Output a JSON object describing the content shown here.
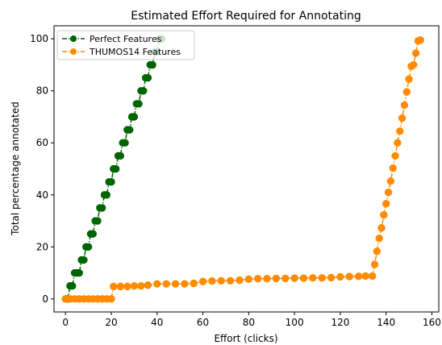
{
  "chart_data": {
    "type": "line",
    "title": "Estimated Effort Required for Annotating",
    "xlabel": "Effort (clicks)",
    "ylabel": "Total percentage annotated",
    "xlim": [
      -5,
      163
    ],
    "ylim": [
      -5,
      105
    ],
    "xticks": [
      0,
      20,
      40,
      60,
      80,
      100,
      120,
      140,
      160
    ],
    "yticks": [
      0,
      20,
      40,
      60,
      80,
      100
    ],
    "grid": false,
    "legend_position": "top-left",
    "series": [
      {
        "name": "Perfect Features",
        "color": "#006400",
        "marker": "circle",
        "line_style": "dash-dot",
        "points": [
          [
            0,
            0
          ],
          [
            1,
            0
          ],
          [
            2,
            5
          ],
          [
            3,
            5
          ],
          [
            4,
            10
          ],
          [
            5,
            10
          ],
          [
            6,
            10
          ],
          [
            7,
            15
          ],
          [
            8,
            15
          ],
          [
            9,
            20
          ],
          [
            10,
            20
          ],
          [
            11,
            25
          ],
          [
            12,
            25
          ],
          [
            13,
            30
          ],
          [
            14,
            30
          ],
          [
            15,
            35
          ],
          [
            16,
            35
          ],
          [
            17,
            40
          ],
          [
            18,
            40
          ],
          [
            19,
            45
          ],
          [
            20,
            45
          ],
          [
            21,
            50
          ],
          [
            22,
            50
          ],
          [
            23,
            55
          ],
          [
            24,
            55
          ],
          [
            25,
            60
          ],
          [
            26,
            60
          ],
          [
            27,
            65
          ],
          [
            28,
            65
          ],
          [
            29,
            70
          ],
          [
            30,
            70
          ],
          [
            31,
            75
          ],
          [
            32,
            75
          ],
          [
            33,
            80
          ],
          [
            34,
            80
          ],
          [
            35,
            85
          ],
          [
            36,
            85
          ],
          [
            37,
            90
          ],
          [
            38,
            90
          ],
          [
            39,
            95
          ],
          [
            40,
            95
          ],
          [
            41,
            100
          ],
          [
            42,
            100
          ]
        ]
      },
      {
        "name": "THUMOS14 Features",
        "color": "#ff8c00",
        "marker": "circle",
        "line_style": "dash-dot",
        "points": [
          [
            0,
            0
          ],
          [
            2,
            0
          ],
          [
            4,
            0
          ],
          [
            6,
            0
          ],
          [
            8,
            0
          ],
          [
            10,
            0
          ],
          [
            12,
            0
          ],
          [
            14,
            0
          ],
          [
            16,
            0
          ],
          [
            18,
            0
          ],
          [
            20,
            0
          ],
          [
            21,
            4.8
          ],
          [
            24,
            4.8
          ],
          [
            27,
            4.8
          ],
          [
            30,
            5
          ],
          [
            33,
            5
          ],
          [
            36,
            5.3
          ],
          [
            40,
            5.8
          ],
          [
            44,
            5.8
          ],
          [
            48,
            5.8
          ],
          [
            52,
            5.8
          ],
          [
            56,
            6
          ],
          [
            60,
            6.7
          ],
          [
            64,
            6.9
          ],
          [
            68,
            7
          ],
          [
            72,
            7
          ],
          [
            76,
            7.2
          ],
          [
            80,
            7.6
          ],
          [
            84,
            7.8
          ],
          [
            88,
            7.8
          ],
          [
            92,
            7.9
          ],
          [
            96,
            7.9
          ],
          [
            100,
            8
          ],
          [
            104,
            8
          ],
          [
            108,
            8.1
          ],
          [
            112,
            8.1
          ],
          [
            116,
            8.2
          ],
          [
            120,
            8.5
          ],
          [
            124,
            8.6
          ],
          [
            128,
            8.7
          ],
          [
            131,
            8.8
          ],
          [
            134,
            8.8
          ],
          [
            135,
            13.3
          ],
          [
            136,
            18.3
          ],
          [
            137,
            23.3
          ],
          [
            138,
            27.3
          ],
          [
            139,
            32.3
          ],
          [
            140,
            36.6
          ],
          [
            141,
            41
          ],
          [
            142,
            45.3
          ],
          [
            143,
            50.3
          ],
          [
            144,
            55
          ],
          [
            145,
            60
          ],
          [
            146,
            64.5
          ],
          [
            147,
            69.5
          ],
          [
            148,
            74.5
          ],
          [
            149,
            79.6
          ],
          [
            150,
            84.5
          ],
          [
            151,
            89.4
          ],
          [
            152,
            90
          ],
          [
            153,
            94.5
          ],
          [
            154,
            99.2
          ],
          [
            155,
            99.5
          ]
        ]
      }
    ]
  }
}
